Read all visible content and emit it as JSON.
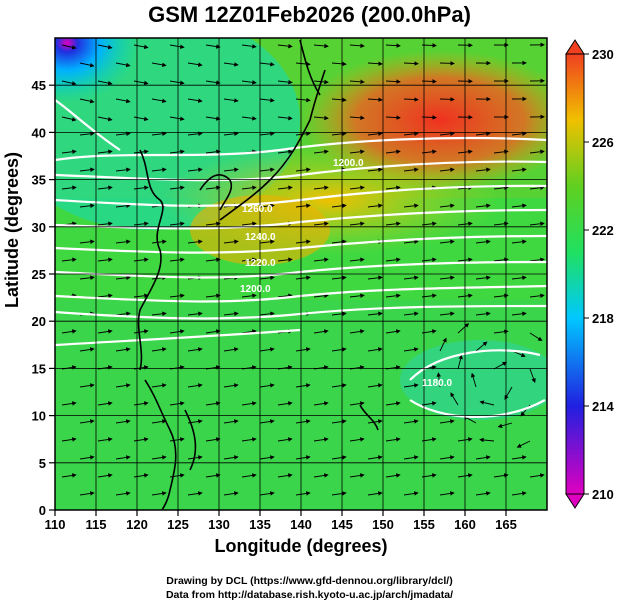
{
  "title": "GSM 12Z01Feb2026 (200.0hPa)",
  "xlabel": "Longitude (degrees)",
  "ylabel": "Latitude  (degrees)",
  "credits": {
    "line1": "Drawing by DCL (https://www.gfd-dennou.org/library/dcl/)",
    "line2": "Data from http://database.rish.kyoto-u.ac.jp/arch/jmadata/"
  },
  "map": {
    "lon_range": [
      110,
      170
    ],
    "lat_range": [
      0,
      50
    ],
    "x_ticks": [
      110,
      115,
      120,
      125,
      130,
      135,
      140,
      145,
      150,
      155,
      160,
      165
    ],
    "y_ticks": [
      0,
      5,
      10,
      15,
      20,
      25,
      30,
      35,
      40,
      45
    ],
    "grid": true,
    "contour_labels": [
      "1200.0",
      "1260.0",
      "1240.0",
      "1220.0",
      "1200.0",
      "1180.0"
    ]
  },
  "colorbar": {
    "ticks": [
      210,
      214,
      218,
      222,
      226,
      230
    ],
    "range": [
      210,
      230
    ],
    "colors": [
      "#e000c0",
      "#2020e0",
      "#00c8ff",
      "#20e060",
      "#60d020",
      "#f0c000",
      "#f04020"
    ]
  }
}
